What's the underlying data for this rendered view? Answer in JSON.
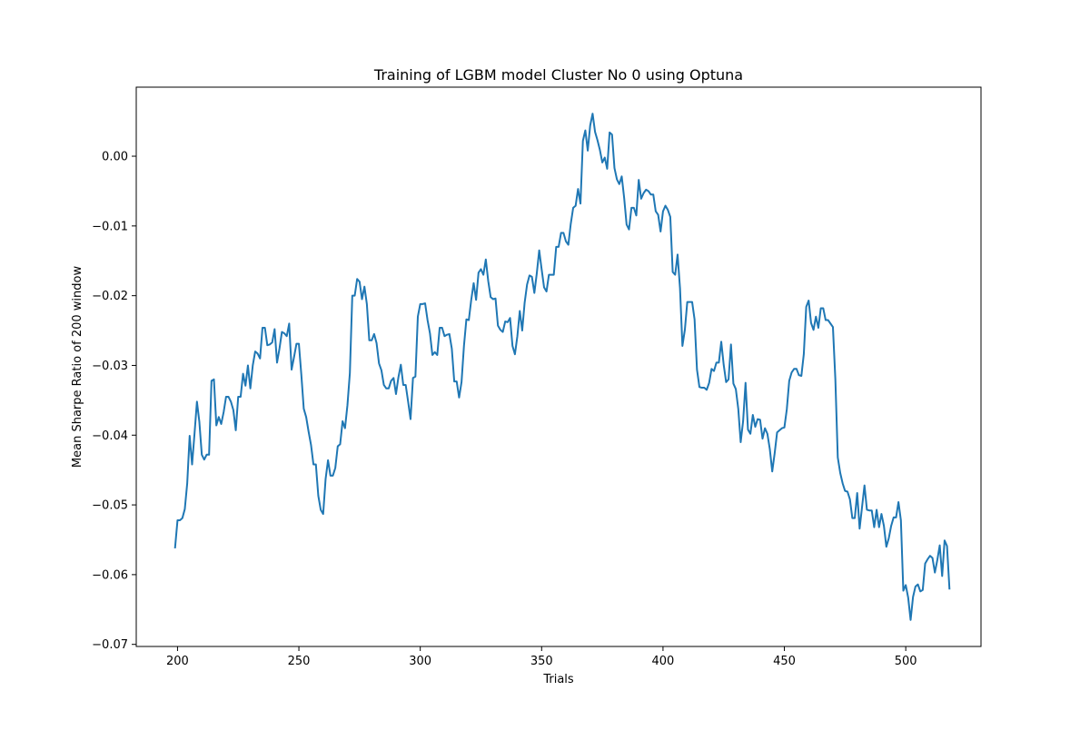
{
  "chart_data": {
    "type": "line",
    "title": "Training of LGBM model Cluster No 0 using Optuna",
    "xlabel": "Trials",
    "ylabel": "Mean Sharpe Ratio of 200 window",
    "xlim": [
      183,
      531
    ],
    "ylim": [
      -0.0703,
      0.0099
    ],
    "xticks": [
      200,
      250,
      300,
      350,
      400,
      450,
      500
    ],
    "xtick_labels": [
      "200",
      "250",
      "300",
      "350",
      "400",
      "450",
      "500"
    ],
    "yticks": [
      0.0,
      -0.01,
      -0.02,
      -0.03,
      -0.04,
      -0.05,
      -0.06,
      -0.07
    ],
    "ytick_labels": [
      "0.00",
      "−0.01",
      "−0.02",
      "−0.03",
      "−0.04",
      "−0.05",
      "−0.06",
      "−0.07"
    ],
    "grid": false,
    "legend": false,
    "line_color": "#1f77b4",
    "series": [
      {
        "x_start": 199,
        "x_step": 1,
        "values": [
          -0.0561,
          -0.0522,
          -0.0522,
          -0.0519,
          -0.0506,
          -0.0469,
          -0.0401,
          -0.0442,
          -0.0398,
          -0.0352,
          -0.0381,
          -0.0428,
          -0.0435,
          -0.0428,
          -0.0428,
          -0.0322,
          -0.032,
          -0.0386,
          -0.0374,
          -0.0384,
          -0.0367,
          -0.0345,
          -0.0345,
          -0.0352,
          -0.0364,
          -0.0393,
          -0.0345,
          -0.0345,
          -0.0312,
          -0.0329,
          -0.03,
          -0.0333,
          -0.03,
          -0.028,
          -0.0283,
          -0.029,
          -0.0246,
          -0.0246,
          -0.0271,
          -0.027,
          -0.0267,
          -0.0248,
          -0.0296,
          -0.0276,
          -0.0252,
          -0.0254,
          -0.0258,
          -0.024,
          -0.0306,
          -0.0288,
          -0.0269,
          -0.0269,
          -0.0313,
          -0.0362,
          -0.0374,
          -0.0395,
          -0.0414,
          -0.0442,
          -0.0442,
          -0.0487,
          -0.0507,
          -0.0513,
          -0.0463,
          -0.0436,
          -0.0458,
          -0.0458,
          -0.0447,
          -0.0416,
          -0.0413,
          -0.038,
          -0.039,
          -0.0357,
          -0.0311,
          -0.02,
          -0.02,
          -0.0176,
          -0.018,
          -0.0205,
          -0.0187,
          -0.0212,
          -0.0264,
          -0.0264,
          -0.0255,
          -0.0268,
          -0.0297,
          -0.0307,
          -0.0328,
          -0.0333,
          -0.0333,
          -0.0322,
          -0.0318,
          -0.0341,
          -0.0317,
          -0.0299,
          -0.0328,
          -0.0328,
          -0.0352,
          -0.0377,
          -0.0318,
          -0.0316,
          -0.023,
          -0.0212,
          -0.0212,
          -0.0211,
          -0.0235,
          -0.0254,
          -0.0285,
          -0.0281,
          -0.0285,
          -0.0246,
          -0.0246,
          -0.0258,
          -0.0256,
          -0.0255,
          -0.0276,
          -0.0323,
          -0.0323,
          -0.0346,
          -0.0324,
          -0.0272,
          -0.0234,
          -0.0235,
          -0.0206,
          -0.0182,
          -0.0206,
          -0.0167,
          -0.0162,
          -0.017,
          -0.0148,
          -0.0179,
          -0.0202,
          -0.0205,
          -0.0204,
          -0.0243,
          -0.0249,
          -0.0252,
          -0.0237,
          -0.0238,
          -0.0232,
          -0.0272,
          -0.0284,
          -0.0258,
          -0.0222,
          -0.025,
          -0.021,
          -0.0184,
          -0.0171,
          -0.0173,
          -0.0196,
          -0.0168,
          -0.0135,
          -0.0162,
          -0.0188,
          -0.0194,
          -0.017,
          -0.017,
          -0.017,
          -0.013,
          -0.013,
          -0.011,
          -0.011,
          -0.0122,
          -0.0127,
          -0.0097,
          -0.0074,
          -0.0071,
          -0.0047,
          -0.0068,
          0.0022,
          0.0037,
          0.0008,
          0.0044,
          0.0061,
          0.0035,
          0.0023,
          0.0009,
          -0.0009,
          -0.0002,
          -0.0018,
          0.0034,
          0.0031,
          -0.0017,
          -0.0033,
          -0.004,
          -0.0029,
          -0.006,
          -0.0098,
          -0.0105,
          -0.0074,
          -0.0074,
          -0.0085,
          -0.0034,
          -0.0061,
          -0.0053,
          -0.0048,
          -0.005,
          -0.0055,
          -0.0055,
          -0.0079,
          -0.0084,
          -0.0108,
          -0.0079,
          -0.0071,
          -0.0077,
          -0.0087,
          -0.0166,
          -0.017,
          -0.0141,
          -0.0189,
          -0.0272,
          -0.0249,
          -0.0209,
          -0.0209,
          -0.0209,
          -0.0234,
          -0.0306,
          -0.0331,
          -0.0332,
          -0.0332,
          -0.0335,
          -0.0325,
          -0.0305,
          -0.0308,
          -0.0296,
          -0.0296,
          -0.0266,
          -0.0299,
          -0.0324,
          -0.032,
          -0.027,
          -0.0326,
          -0.0334,
          -0.0362,
          -0.041,
          -0.038,
          -0.0325,
          -0.0392,
          -0.0398,
          -0.0371,
          -0.0388,
          -0.0377,
          -0.0378,
          -0.0405,
          -0.039,
          -0.0398,
          -0.042,
          -0.0452,
          -0.0426,
          -0.0396,
          -0.0393,
          -0.039,
          -0.0389,
          -0.0363,
          -0.0322,
          -0.031,
          -0.0305,
          -0.0305,
          -0.0314,
          -0.0315,
          -0.0284,
          -0.0216,
          -0.0207,
          -0.0239,
          -0.0249,
          -0.023,
          -0.0246,
          -0.0218,
          -0.0218,
          -0.0235,
          -0.0235,
          -0.024,
          -0.0245,
          -0.032,
          -0.0432,
          -0.0454,
          -0.0469,
          -0.048,
          -0.0481,
          -0.0492,
          -0.0519,
          -0.0519,
          -0.0483,
          -0.0534,
          -0.0503,
          -0.0472,
          -0.0507,
          -0.0508,
          -0.0508,
          -0.0532,
          -0.0507,
          -0.0532,
          -0.0513,
          -0.053,
          -0.056,
          -0.0548,
          -0.053,
          -0.0518,
          -0.0518,
          -0.0496,
          -0.0522,
          -0.0623,
          -0.0615,
          -0.0633,
          -0.0665,
          -0.0632,
          -0.0617,
          -0.0614,
          -0.0624,
          -0.0622,
          -0.0584,
          -0.0578,
          -0.0573,
          -0.0576,
          -0.0597,
          -0.0579,
          -0.0558,
          -0.0602,
          -0.0551,
          -0.0559,
          -0.062
        ]
      }
    ]
  }
}
